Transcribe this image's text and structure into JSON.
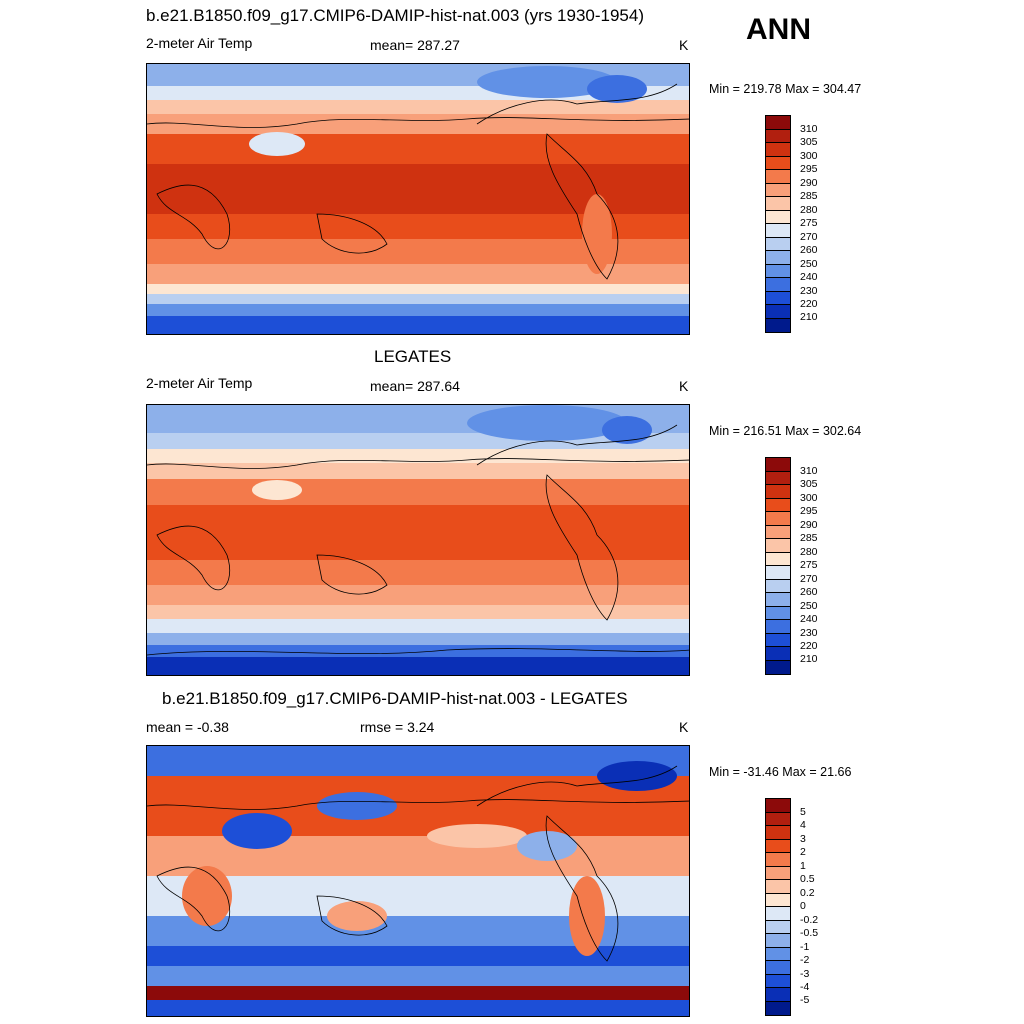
{
  "season": "ANN",
  "panels": [
    {
      "title": "b.e21.B1850.f09_g17.CMIP6-DAMIP-hist-nat.003 (yrs 1930-1954)",
      "left_label": "2-meter Air Temp",
      "center_label": "mean= 287.27",
      "units": "K",
      "minmax": "Min = 219.78 Max = 304.47",
      "colorbar_ticks": [
        "310",
        "305",
        "300",
        "295",
        "290",
        "285",
        "280",
        "275",
        "270",
        "260",
        "250",
        "240",
        "230",
        "220",
        "210"
      ],
      "colors": [
        "#8c0a0a",
        "#b11f0f",
        "#cf3210",
        "#e84d1b",
        "#f37a4b",
        "#f8a07a",
        "#fbc5a8",
        "#fde6d2",
        "#dde8f6",
        "#b9cff0",
        "#8db0ea",
        "#6191e6",
        "#3c6fe0",
        "#1d4fd7",
        "#0a2fb6",
        "#001a8c"
      ]
    },
    {
      "title": "LEGATES",
      "left_label": "2-meter Air Temp",
      "center_label": "mean= 287.64",
      "units": "K",
      "minmax": "Min = 216.51 Max = 302.64",
      "colorbar_ticks": [
        "310",
        "305",
        "300",
        "295",
        "290",
        "285",
        "280",
        "275",
        "270",
        "260",
        "250",
        "240",
        "230",
        "220",
        "210"
      ],
      "colors": [
        "#8c0a0a",
        "#b11f0f",
        "#cf3210",
        "#e84d1b",
        "#f37a4b",
        "#f8a07a",
        "#fbc5a8",
        "#fde6d2",
        "#dde8f6",
        "#b9cff0",
        "#8db0ea",
        "#6191e6",
        "#3c6fe0",
        "#1d4fd7",
        "#0a2fb6",
        "#001a8c"
      ]
    },
    {
      "title": "b.e21.B1850.f09_g17.CMIP6-DAMIP-hist-nat.003 - LEGATES",
      "left_label": "mean =  -0.38",
      "center_label": "rmse =   3.24",
      "units": "K",
      "minmax": "Min = -31.46 Max =  21.66",
      "colorbar_ticks": [
        "5",
        "4",
        "3",
        "2",
        "1",
        "0.5",
        "0.2",
        "0",
        "-0.2",
        "-0.5",
        "-1",
        "-2",
        "-3",
        "-4",
        "-5"
      ],
      "colors": [
        "#8c0a0a",
        "#b11f0f",
        "#cf3210",
        "#e84d1b",
        "#f37a4b",
        "#f8a07a",
        "#fbc5a8",
        "#fde6d2",
        "#dde8f6",
        "#b9cff0",
        "#8db0ea",
        "#6191e6",
        "#3c6fe0",
        "#1d4fd7",
        "#0a2fb6",
        "#001a8c"
      ]
    }
  ]
}
